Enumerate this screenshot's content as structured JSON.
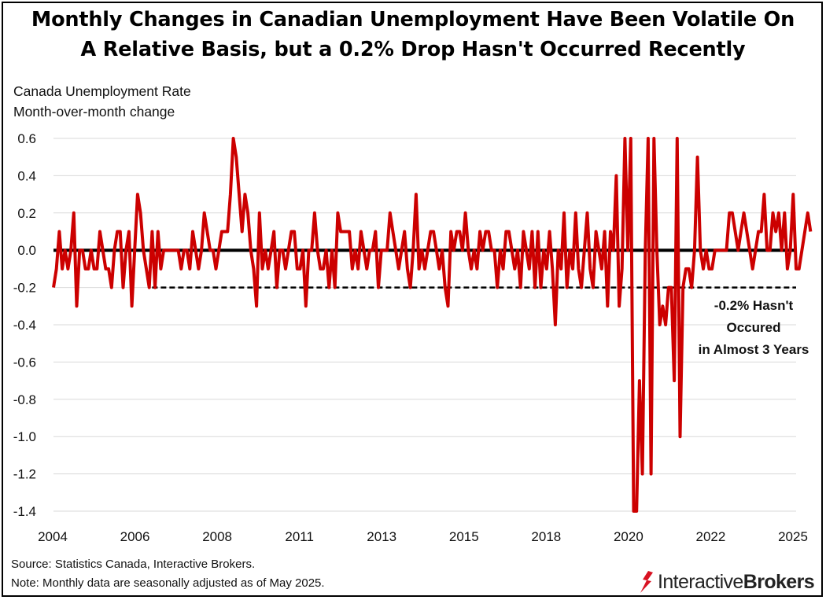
{
  "title_line1": "Monthly Changes in Canadian Unemployment Have Been Volatile On",
  "title_line2": "A Relative Basis, but a 0.2% Drop Hasn't Occurred Recently",
  "subtitle_line1": "Canada Unemployment Rate",
  "subtitle_line2": "Month-over-month change",
  "footer_line1": "Source: Statistics Canada, Interactive Brokers.",
  "footer_line2": "Note: Monthly data are seasonally adjusted as of May 2025.",
  "logo_text_light": "Interactive",
  "logo_text_bold": "Brokers",
  "colors": {
    "series": "#cc0000",
    "zero_line": "#000000",
    "reference_line": "#000000"
  },
  "chart_data": {
    "type": "line",
    "xlabel": "",
    "ylabel": "",
    "ylim": [
      -1.4,
      0.6
    ],
    "yticks": [
      "0.6",
      "0.4",
      "0.2",
      "0.0",
      "-0.2",
      "-0.4",
      "-0.6",
      "-0.8",
      "-1.0",
      "-1.2",
      "-1.4"
    ],
    "xticks": [
      "2004",
      "2006",
      "2008",
      "2011",
      "2013",
      "2015",
      "2018",
      "2020",
      "2022",
      "2025"
    ],
    "grid": "horizontal",
    "reference_line": {
      "y": -0.2,
      "style": "dashed",
      "x_start": "2006-11"
    },
    "annotation": [
      "-0.2% Hasn't",
      "Occured",
      "in Almost 3 Years"
    ],
    "series": [
      {
        "start": "2004-01",
        "frequency": "monthly",
        "values": [
          -0.2,
          -0.1,
          0.1,
          -0.1,
          0.0,
          -0.1,
          0.0,
          0.2,
          -0.3,
          0.0,
          0.0,
          -0.1,
          -0.1,
          0.0,
          -0.1,
          -0.1,
          0.1,
          0.0,
          -0.1,
          -0.1,
          -0.2,
          0.0,
          0.1,
          0.1,
          -0.2,
          0.0,
          0.1,
          -0.3,
          0.0,
          0.3,
          0.2,
          0.0,
          -0.1,
          -0.2,
          0.1,
          -0.2,
          0.1,
          -0.1,
          0.0,
          0.0,
          0.0,
          0.0,
          0.0,
          0.0,
          -0.1,
          0.0,
          0.0,
          -0.1,
          0.1,
          0.0,
          -0.1,
          0.0,
          0.2,
          0.1,
          0.0,
          0.0,
          -0.1,
          0.0,
          0.1,
          0.1,
          0.1,
          0.3,
          0.6,
          0.5,
          0.3,
          0.1,
          0.3,
          0.2,
          0.0,
          -0.1,
          -0.3,
          0.2,
          -0.1,
          0.0,
          -0.1,
          0.0,
          0.1,
          -0.2,
          0.0,
          0.0,
          -0.1,
          0.0,
          0.1,
          0.1,
          -0.1,
          -0.1,
          0.0,
          -0.3,
          0.0,
          0.0,
          0.2,
          0.0,
          -0.1,
          -0.1,
          0.0,
          -0.2,
          0.0,
          -0.2,
          0.2,
          0.1,
          0.1,
          0.1,
          0.1,
          -0.1,
          0.0,
          -0.1,
          0.1,
          0.0,
          -0.1,
          0.0,
          0.0,
          0.1,
          -0.2,
          0.0,
          0.0,
          0.0,
          0.2,
          0.1,
          0.0,
          -0.1,
          0.0,
          0.1,
          -0.1,
          -0.2,
          0.0,
          0.3,
          -0.1,
          0.0,
          -0.1,
          0.0,
          0.1,
          0.1,
          0.0,
          -0.1,
          0.0,
          -0.2,
          -0.3,
          0.1,
          0.0,
          0.1,
          0.1,
          0.0,
          0.2,
          0.0,
          -0.1,
          0.0,
          -0.1,
          0.1,
          0.0,
          0.1,
          0.1,
          0.0,
          0.0,
          -0.2,
          0.0,
          -0.1,
          0.1,
          0.1,
          0.0,
          -0.1,
          0.0,
          -0.2,
          0.1,
          0.0,
          -0.1,
          0.1,
          -0.2,
          0.1,
          -0.2,
          0.0,
          -0.1,
          0.1,
          -0.1,
          -0.4,
          0.0,
          -0.1,
          0.2,
          -0.2,
          0.0,
          -0.1,
          0.2,
          -0.1,
          -0.2,
          0.0,
          0.2,
          -0.1,
          -0.2,
          0.1,
          0.0,
          -0.1,
          0.1,
          -0.3,
          0.1,
          0.0,
          0.4,
          -0.3,
          -0.1,
          0.6,
          0.0,
          0.6,
          -1.4,
          -1.4,
          -0.7,
          -1.2,
          0.0,
          0.6,
          -1.2,
          0.6,
          0.0,
          -0.4,
          -0.3,
          -0.4,
          -0.2,
          -0.2,
          -0.7,
          0.6,
          -1.0,
          -0.2,
          -0.1,
          -0.1,
          -0.2,
          0.0,
          0.5,
          0.0,
          -0.1,
          0.0,
          -0.1,
          -0.1,
          0.0,
          0.0,
          0.0,
          0.0,
          0.0,
          0.2,
          0.2,
          0.1,
          0.0,
          0.1,
          0.2,
          0.1,
          0.0,
          -0.1,
          0.0,
          0.1,
          0.1,
          0.3,
          0.0,
          0.0,
          0.2,
          0.1,
          0.2,
          0.0,
          0.2,
          -0.1,
          0.0,
          0.3,
          -0.1,
          -0.1,
          0.0,
          0.1,
          0.2,
          0.1
        ]
      }
    ]
  }
}
